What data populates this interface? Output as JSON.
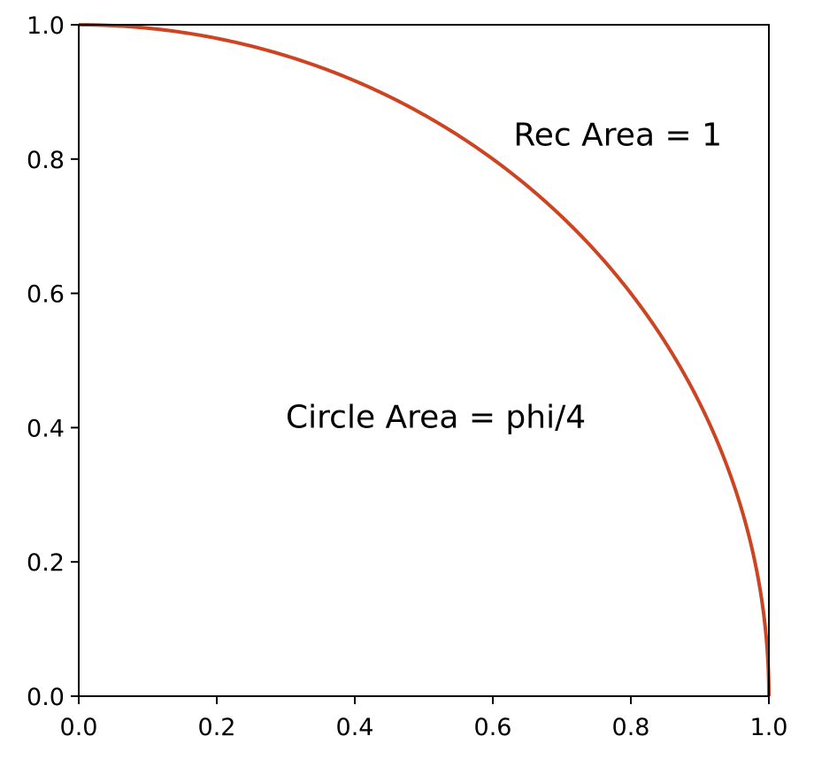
{
  "chart_data": {
    "type": "line",
    "title": "",
    "xlabel": "",
    "ylabel": "",
    "xlim": [
      0.0,
      1.0
    ],
    "ylim": [
      0.0,
      1.0
    ],
    "xticks": [
      0.0,
      0.2,
      0.4,
      0.6,
      0.8,
      1.0
    ],
    "yticks": [
      0.0,
      0.2,
      0.4,
      0.6,
      0.8,
      1.0
    ],
    "xtick_labels": [
      "0.0",
      "0.2",
      "0.4",
      "0.6",
      "0.8",
      "1.0"
    ],
    "ytick_labels": [
      "0.0",
      "0.2",
      "0.4",
      "0.6",
      "0.8",
      "1.0"
    ],
    "grid": false,
    "series": [
      {
        "color": "#cc4422",
        "x": [
          0.0,
          0.1,
          0.2,
          0.3,
          0.4,
          0.5,
          0.6,
          0.7,
          0.8,
          0.85,
          0.9,
          0.95,
          0.98,
          1.0
        ],
        "y": [
          1.0,
          0.995,
          0.98,
          0.954,
          0.917,
          0.866,
          0.8,
          0.714,
          0.6,
          0.527,
          0.436,
          0.312,
          0.199,
          0.0
        ]
      }
    ],
    "annotations": [
      {
        "text": "Rec Area = 1",
        "x": 0.63,
        "y": 0.82
      },
      {
        "text": "Circle Area = phi/4",
        "x": 0.3,
        "y": 0.4
      }
    ]
  }
}
